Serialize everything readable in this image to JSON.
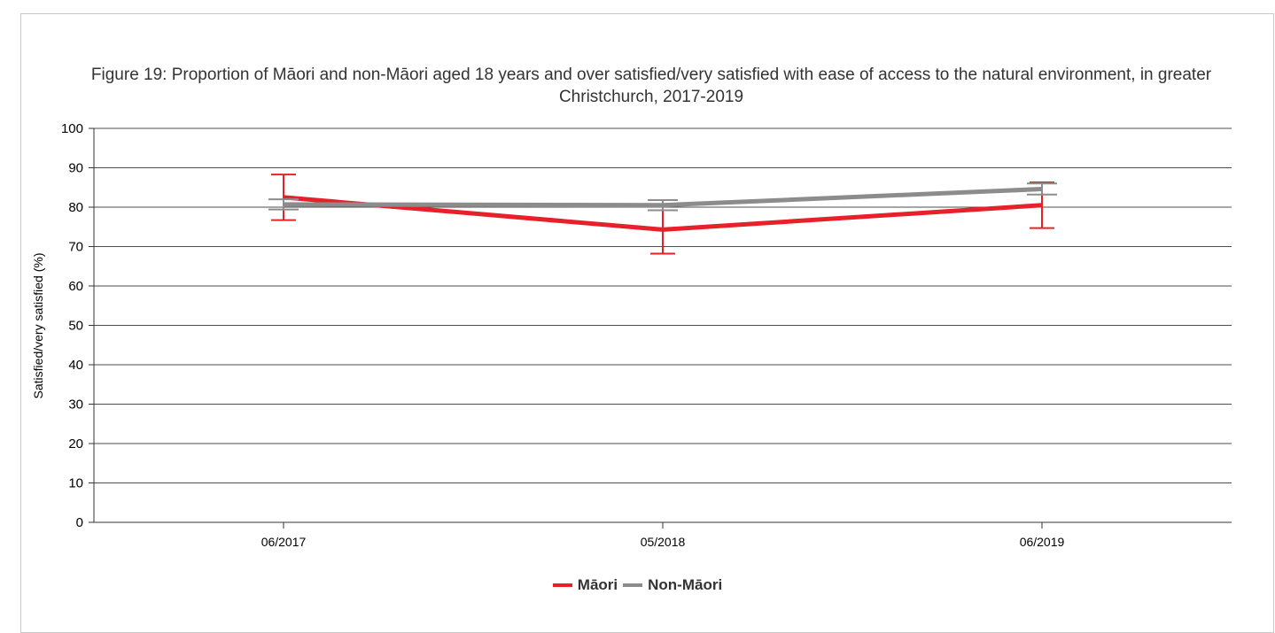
{
  "chart_data": {
    "type": "line",
    "title": "Figure 19: Proportion of Māori and non-Māori aged 18 years and over satisfied/very satisfied with ease of access to the natural environment, in greater Christchurch, 2017-2019",
    "xlabel": "",
    "ylabel": "Satisfied/very satisfied (%)",
    "ylim": [
      0,
      100
    ],
    "yticks": [
      "0",
      "10",
      "20",
      "30",
      "40",
      "50",
      "60",
      "70",
      "80",
      "90",
      "100"
    ],
    "categories": [
      "06/2017",
      "05/2018",
      "06/2019"
    ],
    "grid": true,
    "legend_position": "bottom",
    "series": [
      {
        "name": "Māori",
        "color": "#e8202a",
        "values": [
          82.5,
          74.3,
          80.5
        ],
        "error_low": [
          76.7,
          68.2,
          74.7
        ],
        "error_high": [
          88.3,
          80.4,
          86.3
        ]
      },
      {
        "name": "Non-Māori",
        "color": "#8c8c8c",
        "values": [
          80.7,
          80.5,
          84.6
        ],
        "error_low": [
          79.4,
          79.2,
          83.2
        ],
        "error_high": [
          82.0,
          81.8,
          86.0
        ]
      }
    ]
  }
}
